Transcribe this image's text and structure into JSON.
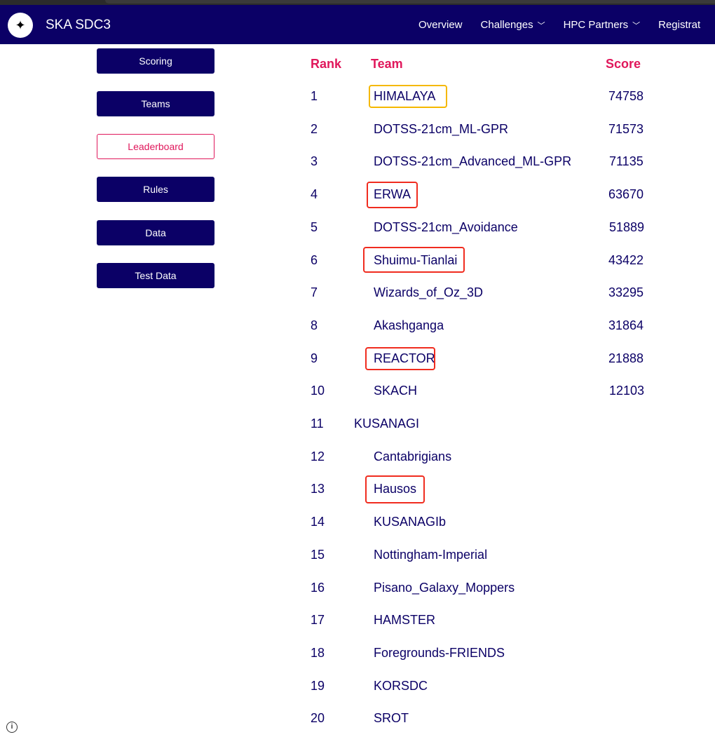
{
  "header": {
    "brand": "SKA SDC3",
    "logo_icon": "star-icon",
    "nav": [
      {
        "label": "Overview"
      },
      {
        "label": "Challenges",
        "dropdown": true
      },
      {
        "label": "HPC Partners",
        "dropdown": true
      },
      {
        "label": "Registrat"
      }
    ]
  },
  "sidebar": {
    "items": [
      {
        "label": "Scoring"
      },
      {
        "label": "Teams"
      },
      {
        "label": "Leaderboard",
        "active": true
      },
      {
        "label": "Rules"
      },
      {
        "label": "Data"
      },
      {
        "label": "Test Data"
      }
    ]
  },
  "table": {
    "headers": {
      "rank": "Rank",
      "team": "Team",
      "score": "Score"
    },
    "rows": [
      {
        "rank": "1",
        "team": "HIMALAYA",
        "score": "74758",
        "highlight": "#f5b800"
      },
      {
        "rank": "2",
        "team": "DOTSS-21cm_ML-GPR",
        "score": "71573"
      },
      {
        "rank": "3",
        "team": "DOTSS-21cm_Advanced_ML-GPR",
        "score": "71135"
      },
      {
        "rank": "4",
        "team": "ERWA",
        "score": "63670",
        "highlight": "#f02c1f"
      },
      {
        "rank": "5",
        "team": "DOTSS-21cm_Avoidance",
        "score": "51889"
      },
      {
        "rank": "6",
        "team": "Shuimu-Tianlai",
        "score": "43422",
        "highlight": "#f02c1f"
      },
      {
        "rank": "7",
        "team": "Wizards_of_Oz_3D",
        "score": "33295"
      },
      {
        "rank": "8",
        "team": "Akashganga",
        "score": "31864"
      },
      {
        "rank": "9",
        "team": "REACTOR",
        "score": "21888",
        "highlight": "#f02c1f"
      },
      {
        "rank": "10",
        "team": "SKACH",
        "score": "12103"
      },
      {
        "rank": "11",
        "team": "KUSANAGI",
        "score": ""
      },
      {
        "rank": "12",
        "team": "Cantabrigians",
        "score": ""
      },
      {
        "rank": "13",
        "team": "Hausos",
        "score": "",
        "highlight": "#f02c1f"
      },
      {
        "rank": "14",
        "team": "KUSANAGIb",
        "score": ""
      },
      {
        "rank": "15",
        "team": "Nottingham-Imperial",
        "score": ""
      },
      {
        "rank": "16",
        "team": "Pisano_Galaxy_Moppers",
        "score": ""
      },
      {
        "rank": "17",
        "team": "HAMSTER",
        "score": ""
      },
      {
        "rank": "18",
        "team": "Foregrounds-FRIENDS",
        "score": ""
      },
      {
        "rank": "19",
        "team": "KORSDC",
        "score": ""
      },
      {
        "rank": "20",
        "team": "SROT",
        "score": ""
      }
    ]
  },
  "footer": {
    "info_icon": "info-icon"
  }
}
